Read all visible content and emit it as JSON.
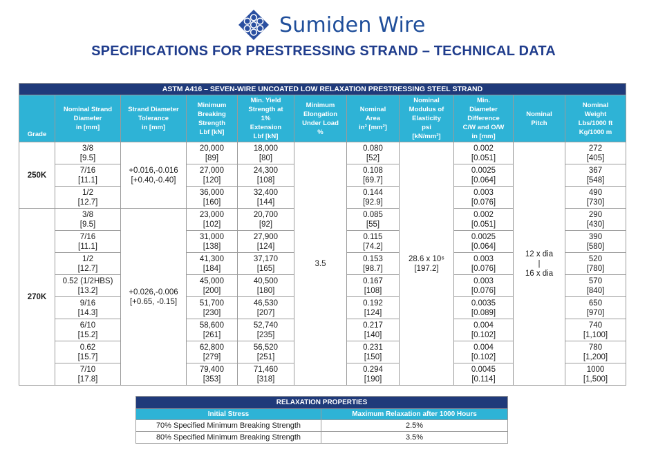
{
  "brand": {
    "name": "Sumiden Wire"
  },
  "page_title": "SPECIFICATIONS FOR PRESTRESSING STRAND – TECHNICAL DATA",
  "main_table": {
    "banner": "ASTM A416 – SEVEN-WIRE UNCOATED LOW RELAXATION PRESTRESSING STEEL STRAND",
    "headers": {
      "grade": "Grade",
      "diameter": [
        "Nominal Strand",
        "Diameter",
        "in [mm]"
      ],
      "tolerance": [
        "Strand Diameter",
        "Tolerance",
        "in [mm]"
      ],
      "breaking": [
        "Minimum",
        "Breaking",
        "Strength",
        "Lbf [kN]"
      ],
      "yield": [
        "Min. Yield",
        "Strength at",
        "1%",
        "Extension",
        "Lbf [kN]"
      ],
      "elongation": [
        "Minimum",
        "Elongation",
        "Under Load",
        "%"
      ],
      "area": [
        "Nominal",
        "Area",
        "in² [mm²]"
      ],
      "modulus": [
        "Nominal",
        "Modulus of",
        "Elasticity",
        "psi",
        "[kN/mm²]"
      ],
      "difference": [
        "Min.",
        "Diameter",
        "Difference",
        "C/W and O/W",
        "in [mm]"
      ],
      "pitch": [
        "Nominal",
        "Pitch"
      ],
      "weight": [
        "Nominal",
        "Weight",
        "Lbs/1000 ft",
        "Kg/1000 m"
      ]
    },
    "elongation_value": "3.5",
    "modulus_value": [
      "28.6 x 10⁶",
      "[197.2]"
    ],
    "pitch_value": [
      "12 x dia",
      "|",
      "16 x dia"
    ],
    "groups": [
      {
        "grade": "250K",
        "tolerance": [
          "+0.016,-0.016",
          "[+0.40,-0.40]"
        ],
        "rows": [
          {
            "dia": [
              "3/8",
              "[9.5]"
            ],
            "brk": [
              "20,000",
              "[89]"
            ],
            "yld": [
              "18,000",
              "[80]"
            ],
            "area": [
              "0.080",
              "[52]"
            ],
            "diff": [
              "0.002",
              "[0.051]"
            ],
            "wt": [
              "272",
              "[405]"
            ]
          },
          {
            "dia": [
              "7/16",
              "[11.1]"
            ],
            "brk": [
              "27,000",
              "[120]"
            ],
            "yld": [
              "24,300",
              "[108]"
            ],
            "area": [
              "0.108",
              "[69.7]"
            ],
            "diff": [
              "0.0025",
              "[0.064]"
            ],
            "wt": [
              "367",
              "[548]"
            ]
          },
          {
            "dia": [
              "1/2",
              "[12.7]"
            ],
            "brk": [
              "36,000",
              "[160]"
            ],
            "yld": [
              "32,400",
              "[144]"
            ],
            "area": [
              "0.144",
              "[92.9]"
            ],
            "diff": [
              "0.003",
              "[0.076]"
            ],
            "wt": [
              "490",
              "[730]"
            ]
          }
        ]
      },
      {
        "grade": "270K",
        "tolerance": [
          "+0.026,-0.006",
          "[+0.65, -0.15]"
        ],
        "rows": [
          {
            "dia": [
              "3/8",
              "[9.5]"
            ],
            "brk": [
              "23,000",
              "[102]"
            ],
            "yld": [
              "20,700",
              "[92]"
            ],
            "area": [
              "0.085",
              "[55]"
            ],
            "diff": [
              "0.002",
              "[0.051]"
            ],
            "wt": [
              "290",
              "[430]"
            ]
          },
          {
            "dia": [
              "7/16",
              "[11.1]"
            ],
            "brk": [
              "31,000",
              "[138]"
            ],
            "yld": [
              "27,900",
              "[124]"
            ],
            "area": [
              "0.115",
              "[74.2]"
            ],
            "diff": [
              "0.0025",
              "[0.064]"
            ],
            "wt": [
              "390",
              "[580]"
            ]
          },
          {
            "dia": [
              "1/2",
              "[12.7]"
            ],
            "brk": [
              "41,300",
              "[184]"
            ],
            "yld": [
              "37,170",
              "[165]"
            ],
            "area": [
              "0.153",
              "[98.7]"
            ],
            "diff": [
              "0.003",
              "[0.076]"
            ],
            "wt": [
              "520",
              "[780]"
            ]
          },
          {
            "dia": [
              "0.52 (1/2HBS)",
              "[13.2]"
            ],
            "brk": [
              "45,000",
              "[200]"
            ],
            "yld": [
              "40,500",
              "[180]"
            ],
            "area": [
              "0.167",
              "[108]"
            ],
            "diff": [
              "0.003",
              "[0.076]"
            ],
            "wt": [
              "570",
              "[840]"
            ]
          },
          {
            "dia": [
              "9/16",
              "[14.3]"
            ],
            "brk": [
              "51,700",
              "[230]"
            ],
            "yld": [
              "46,530",
              "[207]"
            ],
            "area": [
              "0.192",
              "[124]"
            ],
            "diff": [
              "0.0035",
              "[0.089]"
            ],
            "wt": [
              "650",
              "[970]"
            ]
          },
          {
            "dia": [
              "6/10",
              "[15.2]"
            ],
            "brk": [
              "58,600",
              "[261]"
            ],
            "yld": [
              "52,740",
              "[235]"
            ],
            "area": [
              "0.217",
              "[140]"
            ],
            "diff": [
              "0.004",
              "[0.102]"
            ],
            "wt": [
              "740",
              "[1,100]"
            ]
          },
          {
            "dia": [
              "0.62",
              "[15.7]"
            ],
            "brk": [
              "62,800",
              "[279]"
            ],
            "yld": [
              "56,520",
              "[251]"
            ],
            "area": [
              "0.231",
              "[150]"
            ],
            "diff": [
              "0.004",
              "[0.102]"
            ],
            "wt": [
              "780",
              "[1,200]"
            ]
          },
          {
            "dia": [
              "7/10",
              "[17.8]"
            ],
            "brk": [
              "79,400",
              "[353]"
            ],
            "yld": [
              "71,460",
              "[318]"
            ],
            "area": [
              "0.294",
              "[190]"
            ],
            "diff": [
              "0.0045",
              "[0.114]"
            ],
            "wt": [
              "1000",
              "[1,500]"
            ]
          }
        ]
      }
    ]
  },
  "relaxation_table": {
    "banner": "RELAXATION PROPERTIES",
    "headers": [
      "Initial Stress",
      "Maximum Relaxation after 1000 Hours"
    ],
    "rows": [
      [
        "70% Specified Minimum Breaking Strength",
        "2.5%"
      ],
      [
        "80% Specified Minimum Breaking Strength",
        "3.5%"
      ]
    ]
  },
  "colors": {
    "navy": "#1f3a7a",
    "cyan": "#2eb3d6",
    "brand_blue": "#1f4e9a",
    "title_blue": "#1f3c8c"
  },
  "icons": {
    "logo": "strand-cross-section-logo"
  }
}
